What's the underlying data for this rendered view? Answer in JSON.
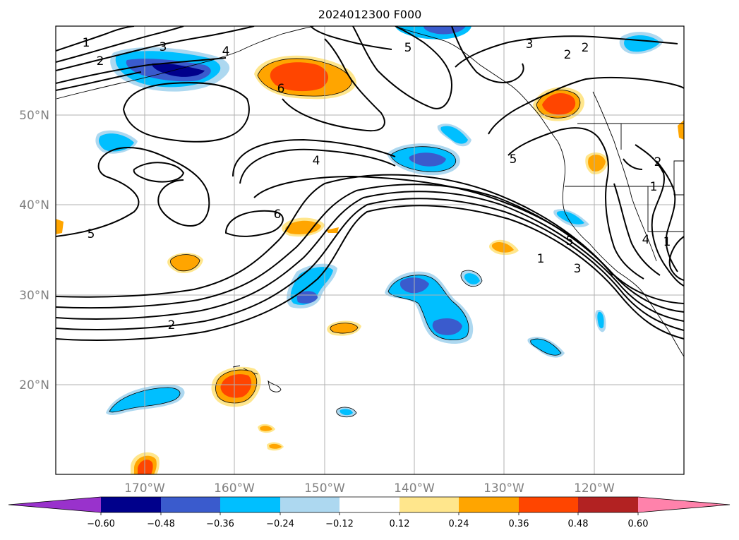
{
  "title": "2024012300 F000",
  "lat_labels": [
    "50°N",
    "40°N",
    "30°N",
    "20°N"
  ],
  "lon_labels": [
    "170°W",
    "160°W",
    "150°W",
    "140°W",
    "130°W",
    "120°W"
  ],
  "colorbar": {
    "ticks": [
      "−0.60",
      "−0.48",
      "−0.36",
      "−0.24",
      "−0.12",
      "0.12",
      "0.24",
      "0.36",
      "0.48",
      "0.60"
    ],
    "colors": [
      "#9932cc",
      "#00008b",
      "#3a5bcd",
      "#00bfff",
      "#add8f0",
      "#ffffff",
      "#ffe68c",
      "#ffa500",
      "#ff4500",
      "#b22222",
      "#ff82ab"
    ]
  },
  "contour_labels": [
    "1",
    "2",
    "3",
    "4",
    "5",
    "6",
    "2",
    "3",
    "4",
    "5",
    "4",
    "2",
    "5",
    "6",
    "5",
    "2",
    "1",
    "1",
    "1",
    "2",
    "5",
    "3",
    "6"
  ]
}
